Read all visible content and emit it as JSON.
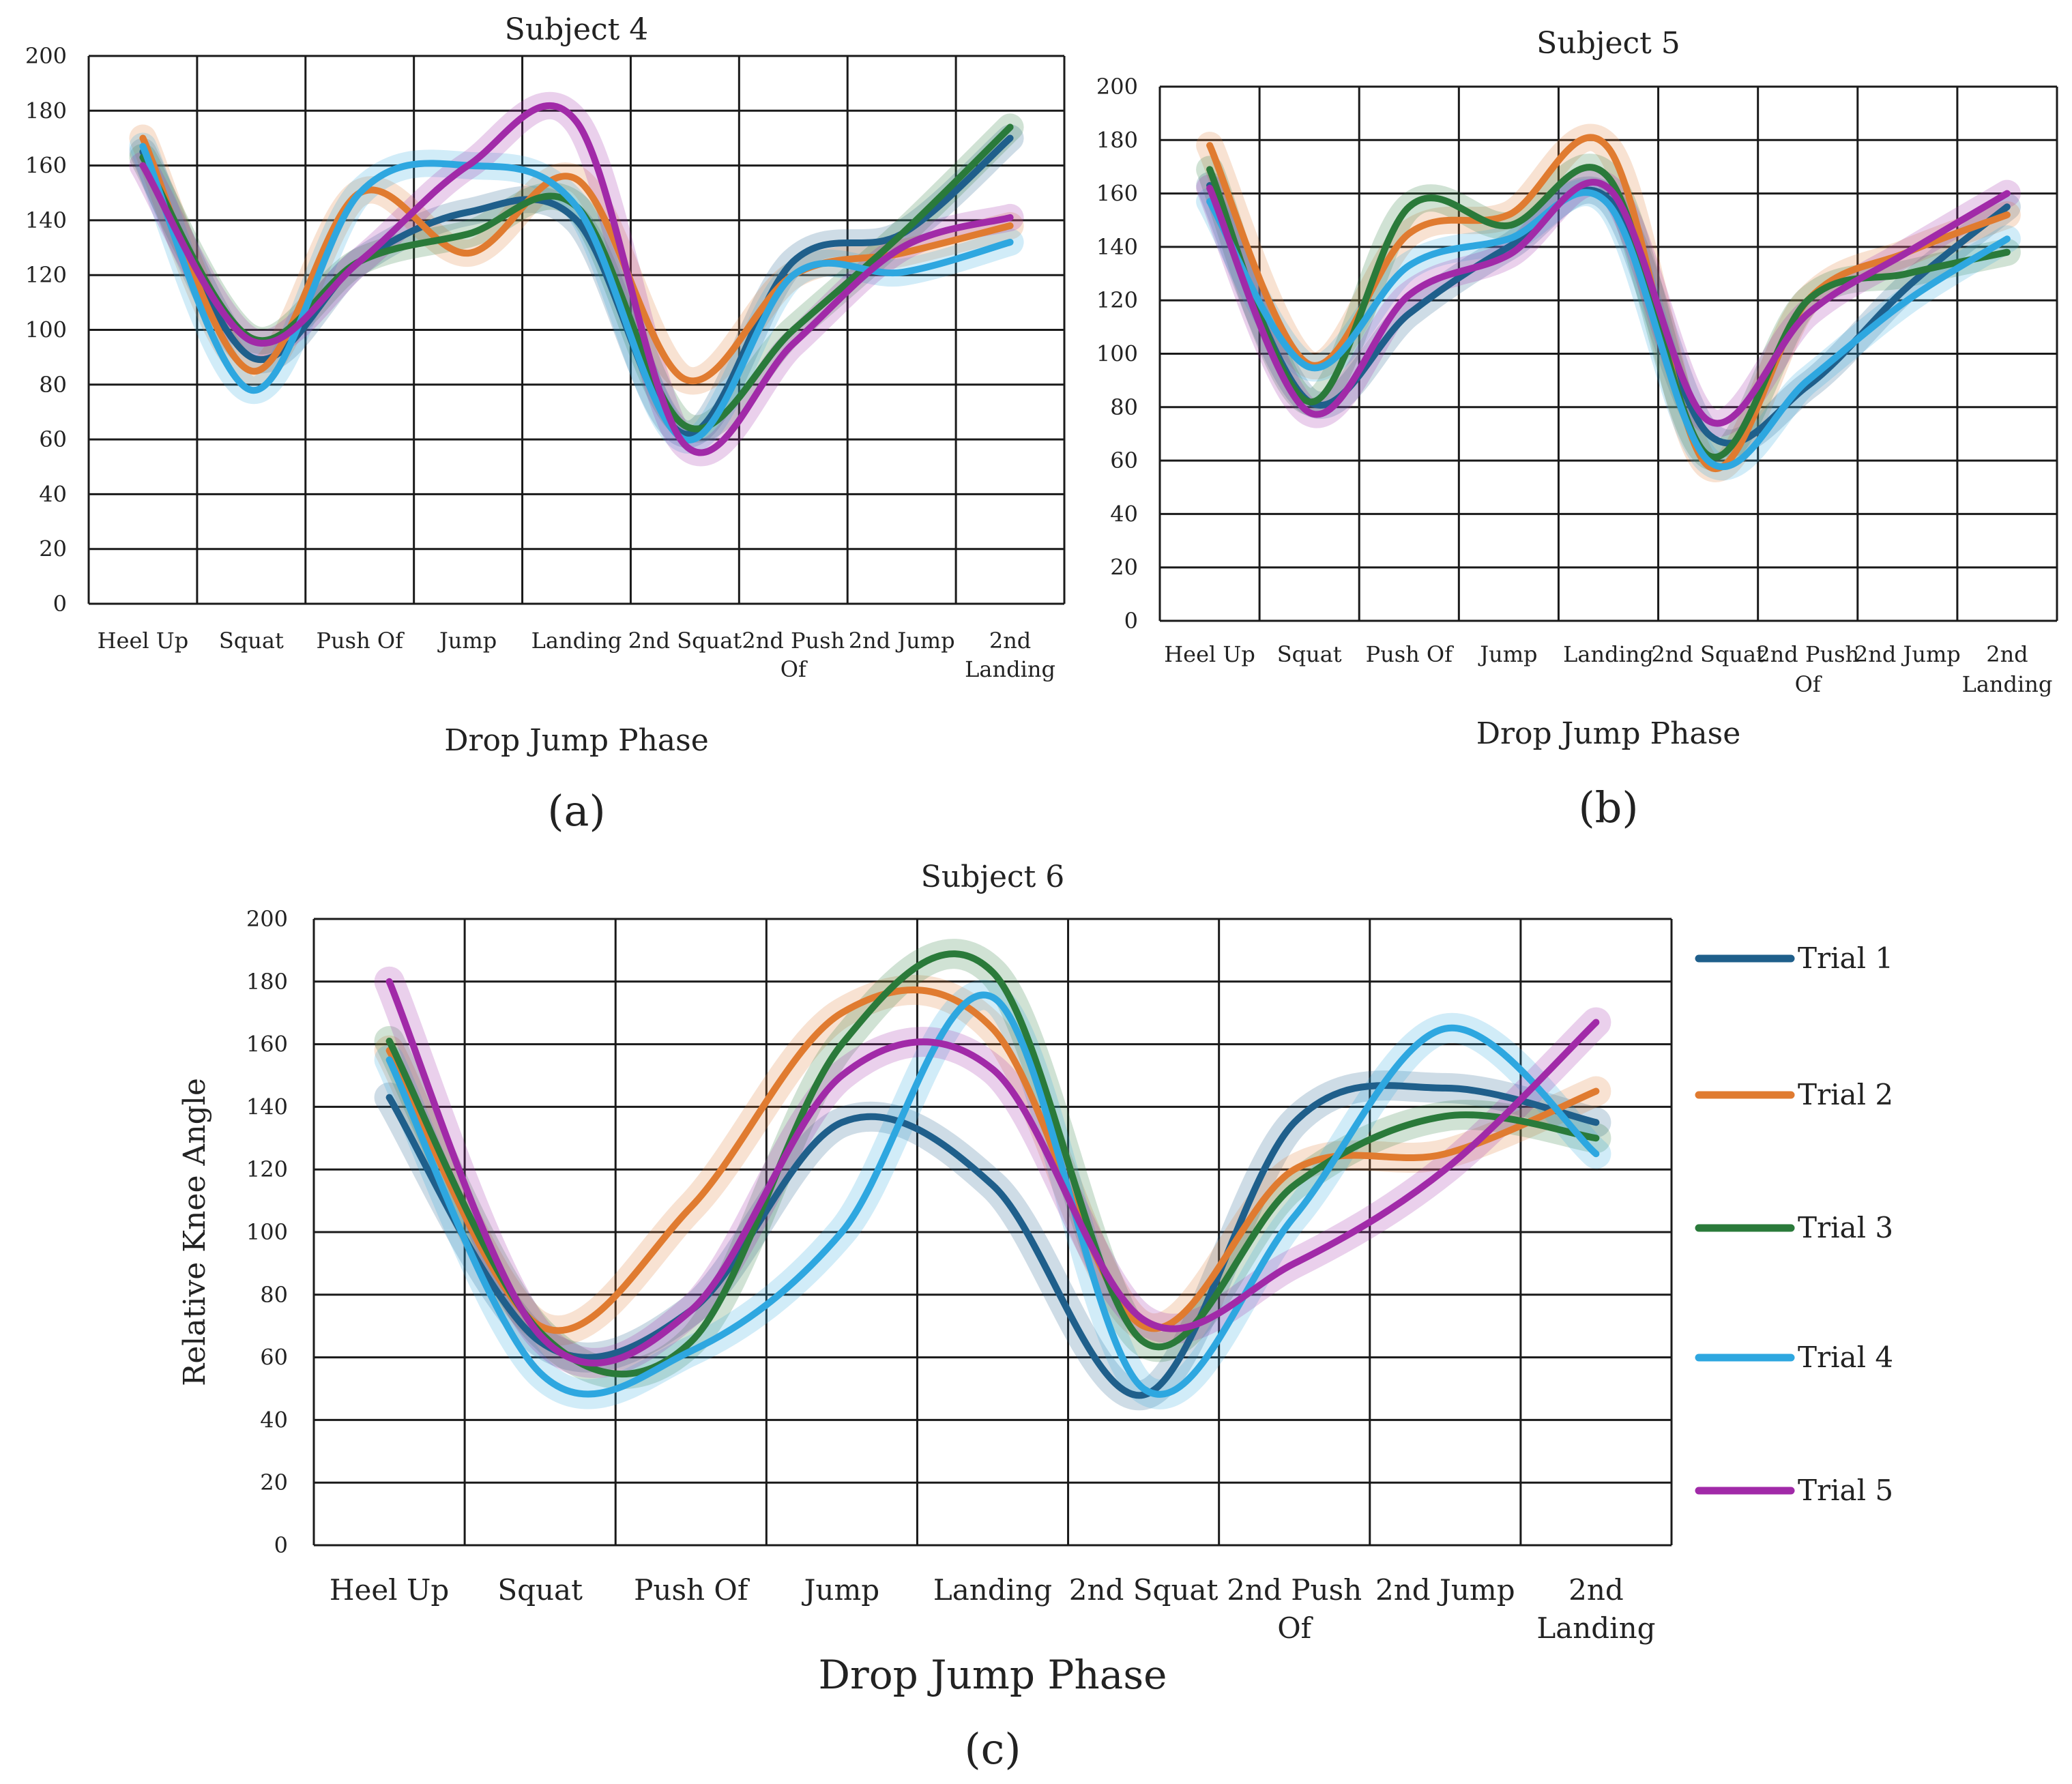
{
  "colors": {
    "Trial 1": "#1f5f8b",
    "Trial 2": "#e07b30",
    "Trial 3": "#2a7a3a",
    "Trial 4": "#2ea7e0",
    "Trial 5": "#a12aa8"
  },
  "chart_data": [
    {
      "panel_label": "(a)",
      "type": "line",
      "title": "Subject 4",
      "xlabel": "Drop Jump Phase",
      "ylabel": "",
      "ylim": [
        0,
        200
      ],
      "yticks": [
        0,
        20,
        40,
        60,
        80,
        100,
        120,
        140,
        160,
        180,
        200
      ],
      "grid": true,
      "legend": "none",
      "categories": [
        "Heel Up",
        "Squat",
        "Push Of",
        "Jump",
        "Landing",
        "2nd Squat",
        "2nd Push Of",
        "2nd Jump",
        "2nd Landing"
      ],
      "series": [
        {
          "name": "Trial 1",
          "values": [
            165,
            90,
            125,
            143,
            140,
            62,
            125,
            135,
            170
          ]
        },
        {
          "name": "Trial 2",
          "values": [
            170,
            85,
            150,
            128,
            155,
            82,
            120,
            128,
            138
          ]
        },
        {
          "name": "Trial 3",
          "values": [
            163,
            97,
            125,
            135,
            145,
            65,
            100,
            135,
            174
          ]
        },
        {
          "name": "Trial 4",
          "values": [
            167,
            78,
            150,
            160,
            145,
            60,
            120,
            121,
            132
          ]
        },
        {
          "name": "Trial 5",
          "values": [
            160,
            96,
            125,
            160,
            176,
            58,
            95,
            130,
            141
          ]
        }
      ]
    },
    {
      "panel_label": "(b)",
      "type": "line",
      "title": "Subject 5",
      "xlabel": "Drop Jump Phase",
      "ylabel": "",
      "ylim": [
        0,
        200
      ],
      "yticks": [
        0,
        20,
        40,
        60,
        80,
        100,
        120,
        140,
        160,
        180,
        200
      ],
      "grid": true,
      "legend": "none",
      "categories": [
        "Heel Up",
        "Squat",
        "Push Of",
        "Jump",
        "Landing",
        "2nd Squat",
        "2nd Push Of",
        "2nd Jump",
        "2nd Landing"
      ],
      "series": [
        {
          "name": "Trial 1",
          "values": [
            163,
            82,
            115,
            140,
            158,
            70,
            88,
            125,
            155
          ]
        },
        {
          "name": "Trial 2",
          "values": [
            178,
            96,
            145,
            152,
            177,
            58,
            120,
            138,
            152
          ]
        },
        {
          "name": "Trial 3",
          "values": [
            169,
            82,
            155,
            148,
            166,
            62,
            120,
            130,
            138
          ]
        },
        {
          "name": "Trial 4",
          "values": [
            157,
            95,
            133,
            143,
            156,
            60,
            90,
            120,
            143
          ]
        },
        {
          "name": "Trial 5",
          "values": [
            162,
            78,
            122,
            137,
            162,
            75,
            115,
            138,
            160
          ]
        }
      ]
    },
    {
      "panel_label": "(c)",
      "type": "line",
      "title": "Subject 6",
      "xlabel": "Drop Jump Phase",
      "ylabel": "Relative Knee Angle",
      "ylim": [
        0,
        200
      ],
      "yticks": [
        0,
        20,
        40,
        60,
        80,
        100,
        120,
        140,
        160,
        180,
        200
      ],
      "grid": true,
      "legend": "right",
      "categories": [
        "Heel Up",
        "Squat",
        "Push Of",
        "Jump",
        "Landing",
        "2nd Squat",
        "2nd Push Of",
        "2nd Jump",
        "2nd Landing"
      ],
      "series": [
        {
          "name": "Trial 1",
          "values": [
            143,
            65,
            75,
            135,
            115,
            48,
            135,
            146,
            135
          ]
        },
        {
          "name": "Trial 2",
          "values": [
            158,
            70,
            108,
            170,
            165,
            70,
            120,
            125,
            145
          ]
        },
        {
          "name": "Trial 3",
          "values": [
            161,
            68,
            65,
            160,
            183,
            65,
            115,
            137,
            130
          ]
        },
        {
          "name": "Trial 4",
          "values": [
            155,
            55,
            62,
            100,
            175,
            50,
            105,
            165,
            125
          ]
        },
        {
          "name": "Trial 5",
          "values": [
            180,
            67,
            75,
            150,
            152,
            72,
            90,
            120,
            167
          ]
        }
      ]
    }
  ]
}
